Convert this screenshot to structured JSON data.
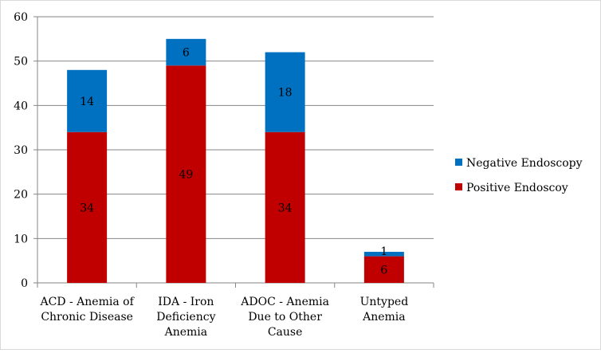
{
  "chart_data": {
    "type": "bar",
    "stacked": true,
    "categories": [
      [
        "ACD - Anemia of",
        "Chronic Disease"
      ],
      [
        "IDA - Iron",
        "Deficiency",
        "Anemia"
      ],
      [
        "ADOC - Anemia",
        "Due to Other",
        "Cause"
      ],
      [
        "Untyped",
        "Anemia"
      ]
    ],
    "series": [
      {
        "name": "Positive Endoscoy",
        "color": "#c00000",
        "values": [
          34,
          49,
          34,
          6
        ]
      },
      {
        "name": "Negative Endoscopy",
        "color": "#0070c0",
        "values": [
          14,
          6,
          18,
          1
        ]
      }
    ],
    "ylim": [
      0,
      60
    ],
    "yticks": [
      0,
      10,
      20,
      30,
      40,
      50,
      60
    ],
    "grid": true,
    "legend_position": "right",
    "legend_order": [
      "Negative Endoscopy",
      "Positive Endoscoy"
    ],
    "data_labels": true
  }
}
